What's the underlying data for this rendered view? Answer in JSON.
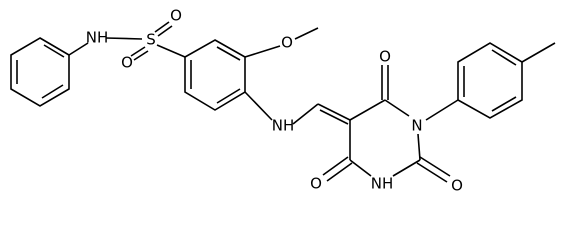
{
  "atoms": [
    {
      "label": "NH"
    },
    {
      "label": "S"
    },
    {
      "label": "O"
    },
    {
      "label": "O"
    },
    {
      "label": "O"
    },
    {
      "label": "NH"
    },
    {
      "label": "O"
    },
    {
      "label": "N"
    },
    {
      "label": "O"
    },
    {
      "label": "NH"
    },
    {
      "label": "O"
    }
  ]
}
